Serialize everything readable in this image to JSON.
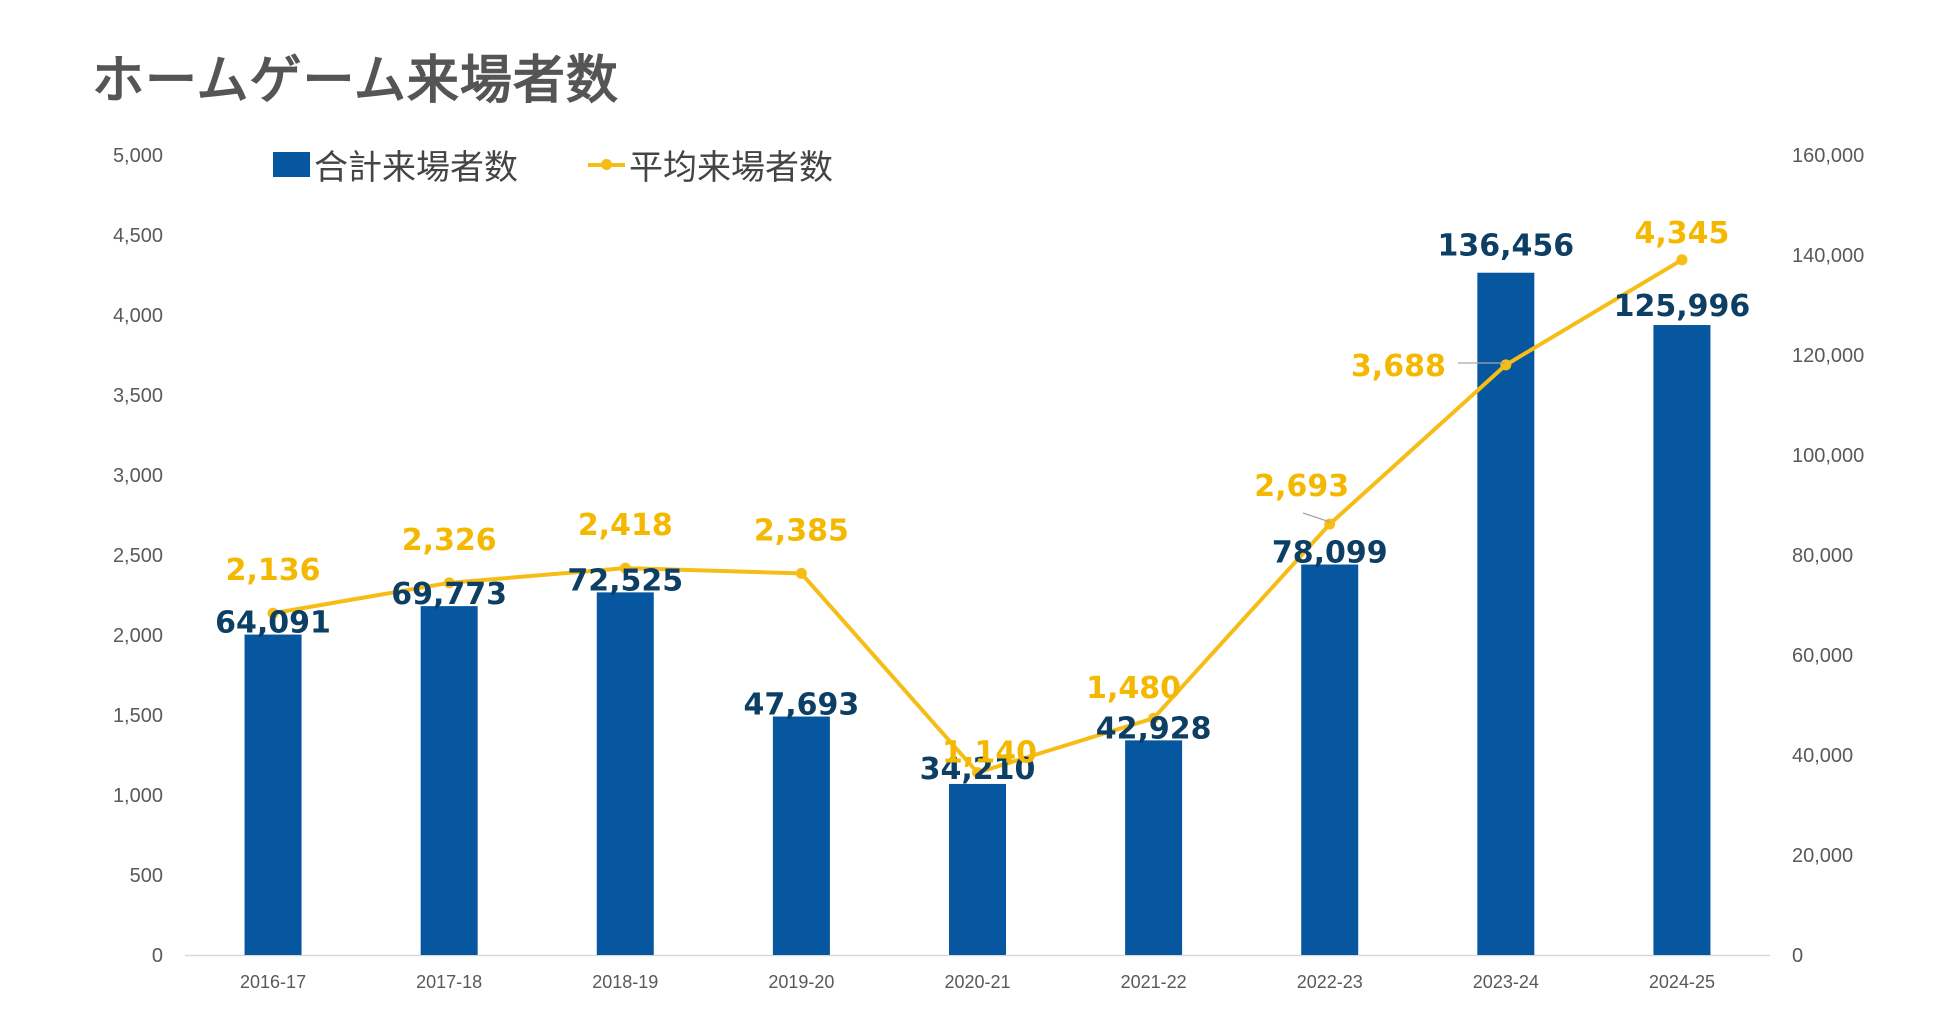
{
  "title": "ホームゲーム来場者数",
  "colors": {
    "bar": "#0656a0",
    "line": "#f6bd16",
    "bar_label": "#0d3e63",
    "line_label": "#f5b800"
  },
  "legend": {
    "bar_label": "合計来場者数",
    "line_label": "平均来場者数"
  },
  "chart_data": {
    "type": "bar",
    "title": "ホームゲーム来場者数",
    "categories": [
      "2016-17",
      "2017-18",
      "2018-19",
      "2019-20",
      "2020-21",
      "2021-22",
      "2022-23",
      "2023-24",
      "2024-25"
    ],
    "series": [
      {
        "name": "合計来場者数",
        "type": "bar",
        "axis": "right",
        "values": [
          64091,
          69773,
          72525,
          47693,
          34210,
          42928,
          78099,
          136456,
          125996
        ],
        "labels": [
          "64,091",
          "69,773",
          "72,525",
          "47,693",
          "34,210",
          "42,928",
          "78,099",
          "136,456",
          "125,996"
        ]
      },
      {
        "name": "平均来場者数",
        "type": "line",
        "axis": "left",
        "values": [
          2136,
          2326,
          2418,
          2385,
          1140,
          1480,
          2693,
          3688,
          4345
        ],
        "labels": [
          "2,136",
          "2,326",
          "2,418",
          "2,385",
          "1,140",
          "1,480",
          "2,693",
          "3,688",
          "4,345"
        ]
      }
    ],
    "left_axis": {
      "ylim": [
        0,
        5000
      ],
      "ticks": [
        "0",
        "500",
        "1,000",
        "1,500",
        "2,000",
        "2,500",
        "3,000",
        "3,500",
        "4,000",
        "4,500",
        "5,000"
      ]
    },
    "right_axis": {
      "ylim": [
        0,
        160000
      ],
      "ticks": [
        "0",
        "20,000",
        "40,000",
        "60,000",
        "80,000",
        "100,000",
        "120,000",
        "140,000",
        "160,000"
      ]
    },
    "grid": false,
    "legend_position": "top-left"
  }
}
